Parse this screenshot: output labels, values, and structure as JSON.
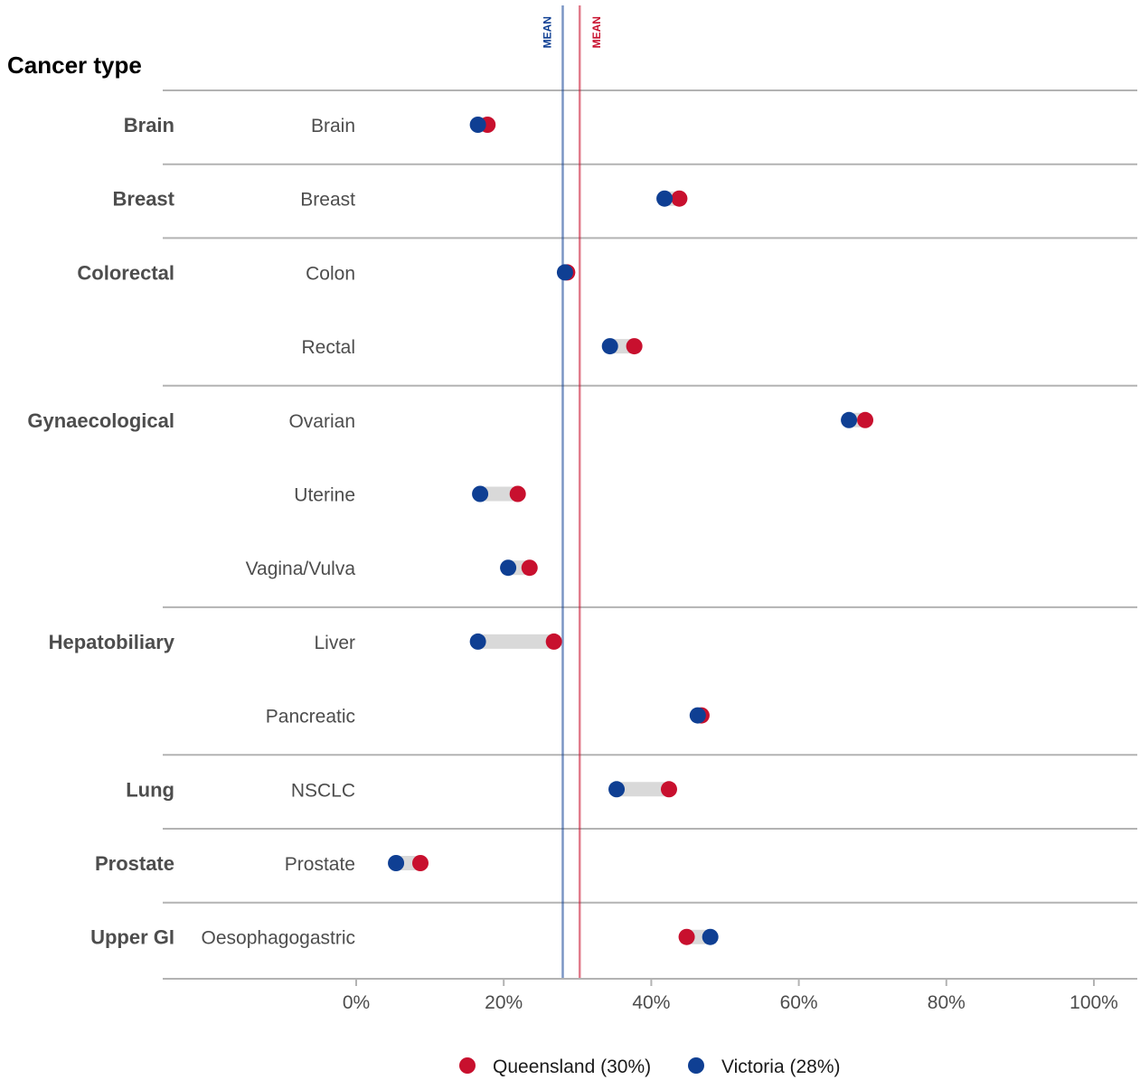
{
  "chart_data": {
    "type": "dumbbell",
    "title": "Cancer type",
    "x_ticks": [
      "0%",
      "20%",
      "40%",
      "60%",
      "80%",
      "100%"
    ],
    "x_tick_values": [
      0,
      20,
      40,
      60,
      80,
      100
    ],
    "xlim": [
      0,
      100
    ],
    "colors": {
      "queensland": "#c8102e",
      "victoria": "#0f3f93",
      "connector": "#d9d9d9",
      "grid": "#b3b3b3"
    },
    "mean_lines": [
      {
        "label": "MEAN",
        "series": "victoria",
        "value": 28
      },
      {
        "label": "MEAN",
        "series": "queensland",
        "value": 30.3
      }
    ],
    "legend": [
      {
        "series": "queensland",
        "label": "Queensland (30%)"
      },
      {
        "series": "victoria",
        "label": "Victoria (28%)"
      }
    ],
    "groups": [
      {
        "name": "Brain",
        "rows": [
          {
            "label": "Brain",
            "queensland": 17.8,
            "victoria": 16.5
          }
        ]
      },
      {
        "name": "Breast",
        "rows": [
          {
            "label": "Breast",
            "queensland": 43.8,
            "victoria": 41.8
          }
        ]
      },
      {
        "name": "Colorectal",
        "rows": [
          {
            "label": "Colon",
            "queensland": 28.6,
            "victoria": 28.3
          },
          {
            "label": "Rectal",
            "queensland": 37.7,
            "victoria": 34.4
          }
        ]
      },
      {
        "name": "Gynaecological",
        "rows": [
          {
            "label": "Ovarian",
            "queensland": 69.0,
            "victoria": 66.8
          },
          {
            "label": "Uterine",
            "queensland": 21.9,
            "victoria": 16.8
          },
          {
            "label": "Vagina/Vulva",
            "queensland": 23.5,
            "victoria": 20.6
          }
        ]
      },
      {
        "name": "Hepatobiliary",
        "rows": [
          {
            "label": "Liver",
            "queensland": 26.8,
            "victoria": 16.5
          },
          {
            "label": "Pancreatic",
            "queensland": 46.8,
            "victoria": 46.3
          }
        ]
      },
      {
        "name": "Lung",
        "rows": [
          {
            "label": "NSCLC",
            "queensland": 42.4,
            "victoria": 35.3
          }
        ]
      },
      {
        "name": "Prostate",
        "rows": [
          {
            "label": "Prostate",
            "queensland": 8.7,
            "victoria": 5.4
          }
        ]
      },
      {
        "name": "Upper GI",
        "rows": [
          {
            "label": "Oesophagogastric",
            "queensland": 44.8,
            "victoria": 48.0
          }
        ]
      }
    ]
  }
}
